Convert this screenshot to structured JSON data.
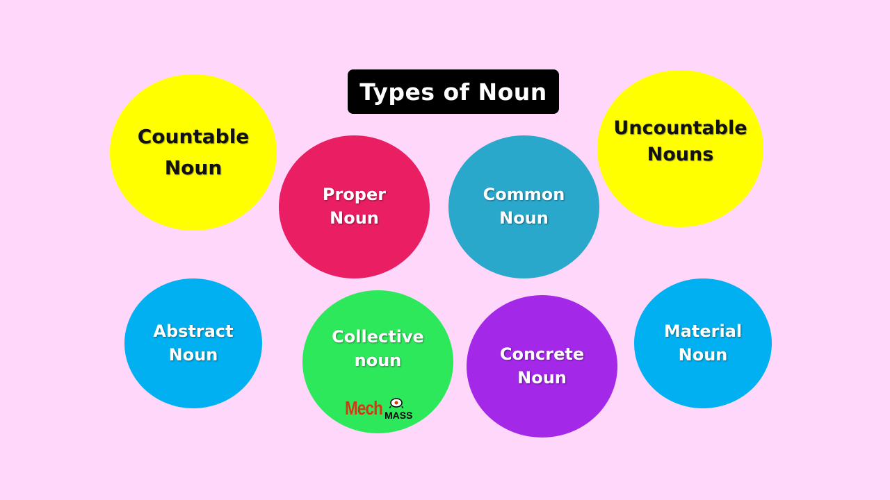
{
  "title": "Types of Noun",
  "bubbles": [
    {
      "id": "countable",
      "label": "Countable\nNoun",
      "color": "#ffff00"
    },
    {
      "id": "proper",
      "label": "Proper\nNoun",
      "color": "#e91e63"
    },
    {
      "id": "common",
      "label": "Common\nNoun",
      "color": "#2aa8cc"
    },
    {
      "id": "uncountable",
      "label": "Uncountable\nNouns",
      "color": "#ffff00"
    },
    {
      "id": "abstract",
      "label": "Abstract\nNoun",
      "color": "#00b0f0"
    },
    {
      "id": "collective",
      "label": "Collective\nnoun",
      "color": "#2ee85c"
    },
    {
      "id": "concrete",
      "label": "Concrete\nNoun",
      "color": "#a428e8"
    },
    {
      "id": "material",
      "label": "Material\nNoun",
      "color": "#00b0f0"
    }
  ],
  "logo": {
    "part1": "Mech",
    "part2": "MASS"
  }
}
